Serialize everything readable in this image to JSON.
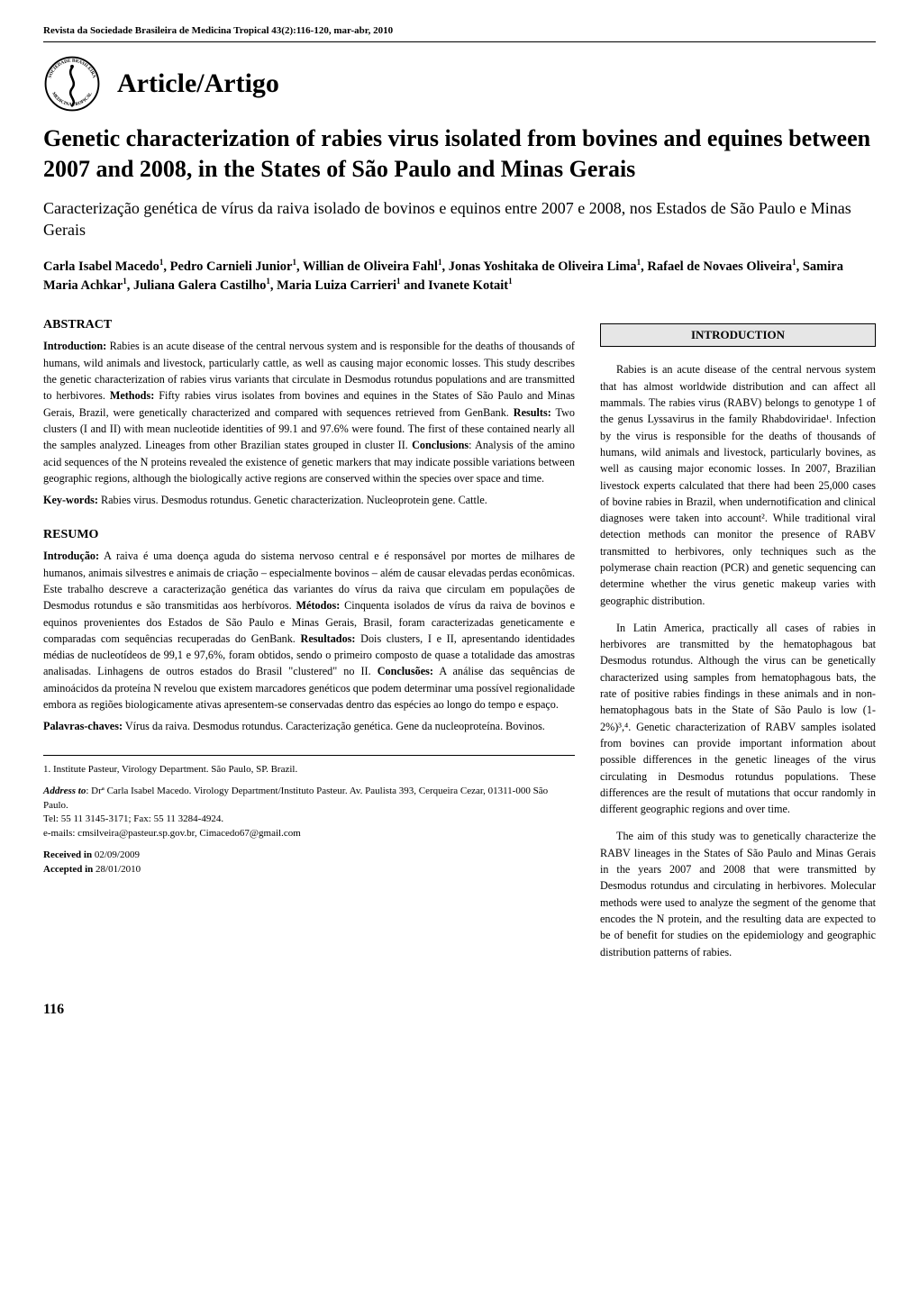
{
  "journal_header": "Revista da Sociedade Brasileira de Medicina Tropical 43(2):116-120, mar-abr, 2010",
  "logo": {
    "outer_text": "SOCIEDADE BRASILEIRA",
    "inner_text": "MEDICINA TROPICAL",
    "border_color": "#000000",
    "fill_color": "#ffffff",
    "snake_color": "#000000"
  },
  "section_label": "Article/Artigo",
  "title": "Genetic characterization of rabies virus isolated from bovines and equines between 2007 and 2008, in the States of São Paulo and Minas Gerais",
  "subtitle": "Caracterização genética de vírus da raiva isolado de bovinos e equinos entre 2007 e 2008, nos Estados de São Paulo e Minas Gerais",
  "authors_html": "Carla Isabel Macedo<sup>1</sup>, Pedro Carnieli Junior<sup>1</sup>, Willian de Oliveira Fahl<sup>1</sup>, Jonas Yoshitaka de Oliveira Lima<sup>1</sup>, Rafael de Novaes Oliveira<sup>1</sup>, Samira Maria Achkar<sup>1</sup>, Juliana Galera Castilho<sup>1</sup>, Maria Luiza Carrieri<sup>1</sup> and Ivanete Kotait<sup>1</sup>",
  "abstract": {
    "heading": "ABSTRACT",
    "segments": [
      {
        "label": "Introduction:",
        "text": " Rabies is an acute disease of the central nervous system and is responsible for the deaths of thousands of humans, wild animals and livestock, particularly cattle, as well as causing major economic losses. This study describes the genetic characterization of rabies virus variants that circulate in Desmodus rotundus populations and are transmitted to herbivores."
      },
      {
        "label": "Methods:",
        "text": " Fifty rabies virus isolates from bovines and equines in the States of São Paulo and Minas Gerais, Brazil, were genetically characterized and compared with sequences retrieved from GenBank."
      },
      {
        "label": "Results:",
        "text": " Two clusters (I and II) with mean nucleotide identities of 99.1 and 97.6% were found. The first of these contained nearly all the samples analyzed. Lineages from other Brazilian states grouped in cluster II."
      },
      {
        "label": "Conclusions",
        "text": ": Analysis of the amino acid sequences of the N proteins revealed the existence of genetic markers that may indicate possible variations between geographic regions, although the biologically active regions are conserved within the species over space and time."
      }
    ],
    "keywords_label": "Key-words:",
    "keywords": " Rabies virus. Desmodus rotundus. Genetic characterization. Nucleoprotein gene. Cattle."
  },
  "resumo": {
    "heading": "RESUMO",
    "segments": [
      {
        "label": "Introdução:",
        "text": " A raiva é uma doença aguda do sistema nervoso central e é responsável por mortes de milhares de humanos, animais silvestres e animais de criação – especialmente bovinos – além de causar elevadas perdas econômicas. Este trabalho descreve a caracterização genética das variantes do vírus da raiva que circulam em populações de Desmodus rotundus e são transmitidas aos herbívoros."
      },
      {
        "label": "Métodos:",
        "text": " Cinquenta isolados de vírus da raiva de bovinos e equinos provenientes dos Estados de São Paulo e Minas Gerais, Brasil, foram caracterizadas geneticamente e comparadas com sequências recuperadas do GenBank."
      },
      {
        "label": "Resultados:",
        "text": " Dois clusters, I e II, apresentando identidades médias de nucleotídeos de 99,1 e 97,6%, foram obtidos, sendo o primeiro composto de quase a totalidade das amostras analisadas. Linhagens de outros estados do Brasil \"clustered\" no II."
      },
      {
        "label": "Conclusões:",
        "text": " A análise das sequências de aminoácidos da proteína N revelou que existem marcadores genéticos que podem determinar uma possível regionalidade embora as regiões biologicamente ativas apresentem-se conservadas dentro das espécies ao longo do tempo e espaço."
      }
    ],
    "keywords_label": "Palavras-chaves:",
    "keywords": " Vírus da raiva. Desmodus rotundus. Caracterização genética. Gene da nucleoproteína. Bovinos."
  },
  "affiliation_block": {
    "affiliation": "1. Institute Pasteur, Virology Department. São Paulo, SP. Brazil.",
    "address_label": "Address to",
    "address": ": Drª Carla Isabel Macedo. Virology Department/Instituto Pasteur. Av. Paulista 393, Cerqueira Cezar, 01311-000 São Paulo.",
    "tel": "Tel: 55 11 3145-3171; Fax: 55 11 3284-4924.",
    "emails": "e-mails: cmsilveira@pasteur.sp.gov.br, Cimacedo67@gmail.com",
    "received_label": "Received in ",
    "received": "02/09/2009",
    "accepted_label": "Accepted in ",
    "accepted": "28/01/2010"
  },
  "introduction": {
    "heading": "INTRODUCTION",
    "paragraphs": [
      "Rabies is an acute disease of the central nervous system that has almost worldwide distribution and can affect all mammals. The rabies virus (RABV) belongs to genotype 1 of the genus Lyssavirus in the family Rhabdoviridae¹. Infection by the virus is responsible for the deaths of thousands of humans, wild animals and livestock, particularly bovines, as well as causing major economic losses. In 2007, Brazilian livestock experts calculated that there had been 25,000 cases of bovine rabies in Brazil, when undernotification and clinical diagnoses were taken into account². While traditional viral detection methods can monitor the presence of RABV transmitted to herbivores, only techniques such as the polymerase chain reaction (PCR) and genetic sequencing can determine whether the virus genetic makeup varies with geographic distribution.",
      "In Latin America, practically all cases of rabies in herbivores are transmitted by the hematophagous bat Desmodus rotundus. Although the virus can be genetically characterized using samples from hematophagous bats, the rate of positive rabies findings in these animals and in non-hematophagous bats in the State of São Paulo is low (1-2%)³,⁴. Genetic characterization of RABV samples isolated from bovines can provide important information about possible differences in the genetic lineages of the virus circulating in Desmodus rotundus populations. These differences are the result of mutations that occur randomly in different geographic regions and over time.",
      "The aim of this study was to genetically characterize the RABV lineages in the States of São Paulo and Minas Gerais in the years 2007 and 2008 that were transmitted by Desmodus rotundus and circulating in herbivores. Molecular methods were used to analyze the segment of the genome that encodes the N protein, and the resulting data are expected to be of benefit for studies on the epidemiology and geographic distribution patterns of rabies."
    ]
  },
  "page_number": "116",
  "colors": {
    "text": "#000000",
    "background": "#ffffff",
    "box_fill": "#e6e6e6",
    "rule": "#000000"
  },
  "typography": {
    "header_fontsize_pt": 8,
    "section_label_fontsize_pt": 22,
    "title_fontsize_pt": 19,
    "subtitle_fontsize_pt": 13,
    "authors_fontsize_pt": 11,
    "body_fontsize_pt": 9,
    "footer_fontsize_pt": 12
  }
}
